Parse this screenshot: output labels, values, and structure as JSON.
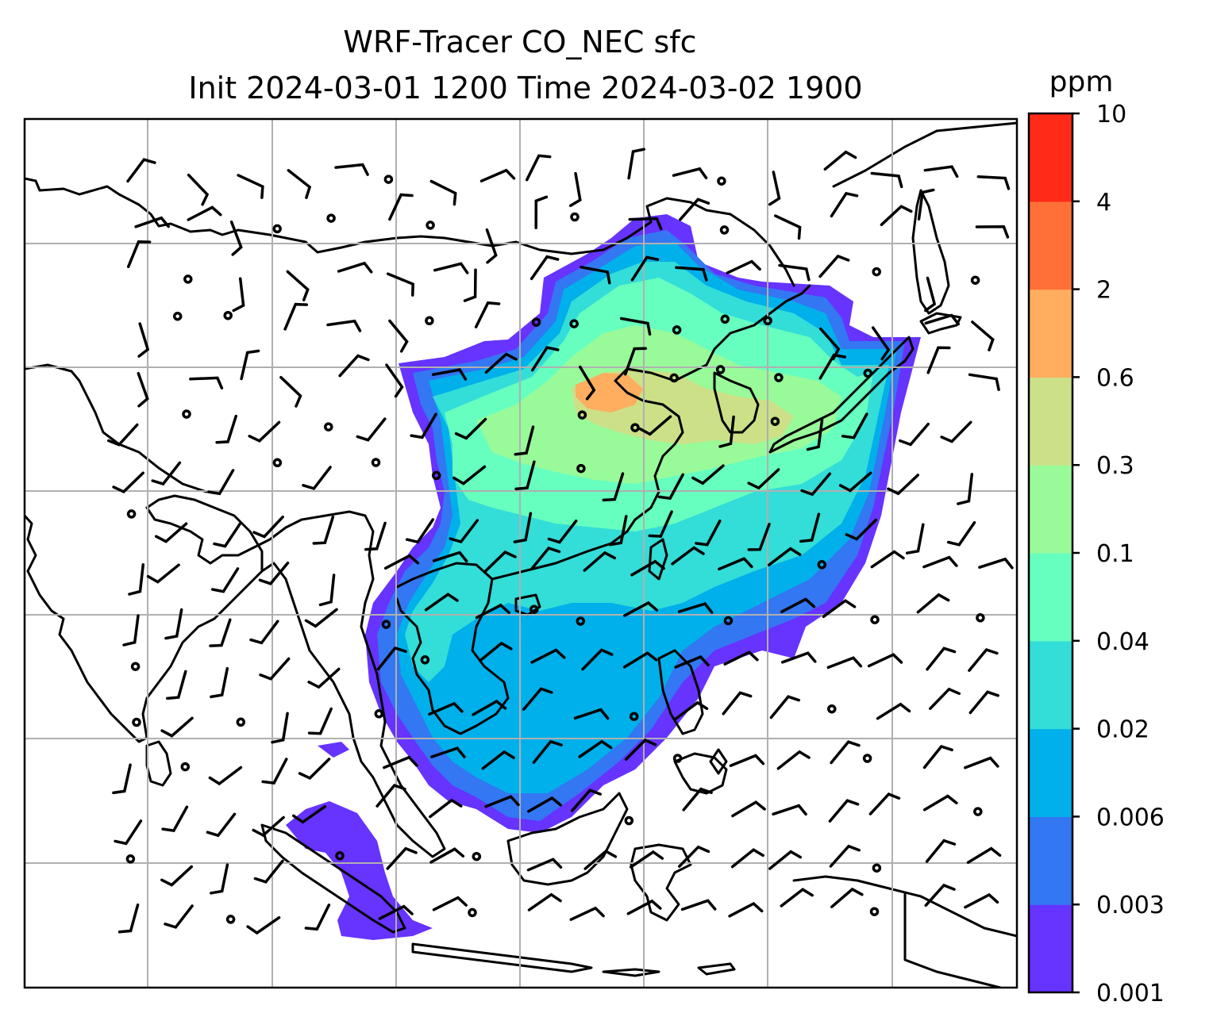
{
  "map": {
    "title_line1": "WRF-Tracer CO_NEC sfc",
    "title_line2": "Init 2024-03-01 1200 Time 2024-03-02 1900",
    "variable": "CO_NEC",
    "level": "sfc",
    "gridlines": true,
    "coastlines": true,
    "wind_barbs": true
  },
  "colorbar": {
    "unit_label": "ppm",
    "levels": [
      "0.001",
      "0.003",
      "0.006",
      "0.02",
      "0.04",
      "0.1",
      "0.3",
      "0.6",
      "2",
      "4",
      "10"
    ],
    "colors": [
      "#6633ff",
      "#3377f2",
      "#00b0ea",
      "#33ddd8",
      "#66ffbf",
      "#99fa99",
      "#cce088",
      "#ffad5f",
      "#ff7038",
      "#ff2a17"
    ]
  },
  "plume": {
    "colors": {
      "c1": "#6633ff",
      "c2": "#3377f2",
      "c3": "#00b0ea",
      "c4": "#33ddd8",
      "c5": "#66ffbf",
      "c6": "#99fa99",
      "c7": "#cce088",
      "c8": "#ffad5f"
    }
  }
}
